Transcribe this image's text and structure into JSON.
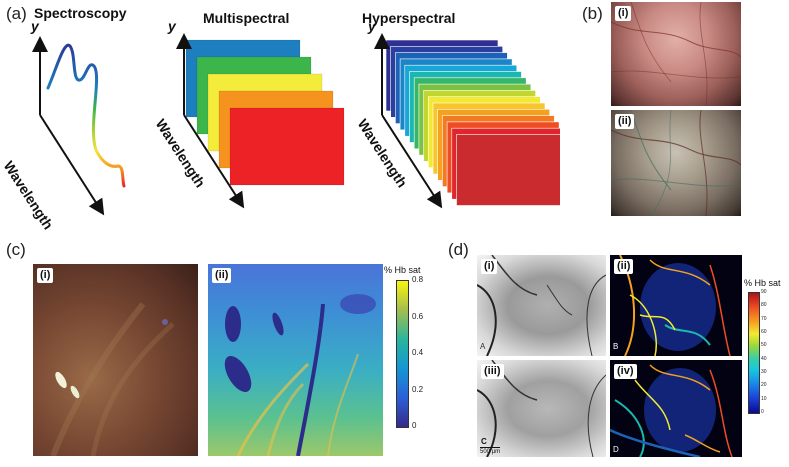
{
  "panels": {
    "a": {
      "label": "(a)",
      "spectroscopy": {
        "title": "Spectroscopy",
        "y_axis": "y",
        "x_axis": "Wavelength"
      },
      "multispectral": {
        "title": "Multispectral",
        "y_axis": "y",
        "x_axis": "Wavelength",
        "band_colors": [
          "#1e7fc0",
          "#3cb54a",
          "#f4ec3b",
          "#f6921e",
          "#ec2226"
        ]
      },
      "hyperspectral": {
        "title": "Hyperspectral",
        "y_axis": "y",
        "x_axis": "Wavelength",
        "band_colors": [
          "#2e3192",
          "#2b3fa0",
          "#1c63b8",
          "#1b85c8",
          "#16a6d8",
          "#1cb8b0",
          "#35b66a",
          "#7cc242",
          "#c1d730",
          "#f2ea30",
          "#f8c62c",
          "#f6a020",
          "#f27b21",
          "#ee4d24",
          "#e0262b",
          "#c92b2f"
        ]
      }
    },
    "b": {
      "label": "(b)",
      "sub": [
        "(i)",
        "(ii)"
      ]
    },
    "c": {
      "label": "(c)",
      "sub": [
        "(i)",
        "(ii)"
      ],
      "colorbar": {
        "title": "% Hb sat",
        "ticks": [
          "0.8",
          "0.6",
          "0.4",
          "0.2",
          "0"
        ]
      }
    },
    "d": {
      "label": "(d)",
      "sub": [
        "(i)",
        "(ii)",
        "(iii)",
        "(iv)"
      ],
      "corner_letters": [
        "A",
        "B",
        "C",
        "D"
      ],
      "scale_bar": "500 µm",
      "colorbar": {
        "title": "% Hb sat",
        "ticks": [
          "90",
          "80",
          "70",
          "60",
          "50",
          "40",
          "30",
          "20",
          "10",
          "0"
        ]
      }
    }
  }
}
